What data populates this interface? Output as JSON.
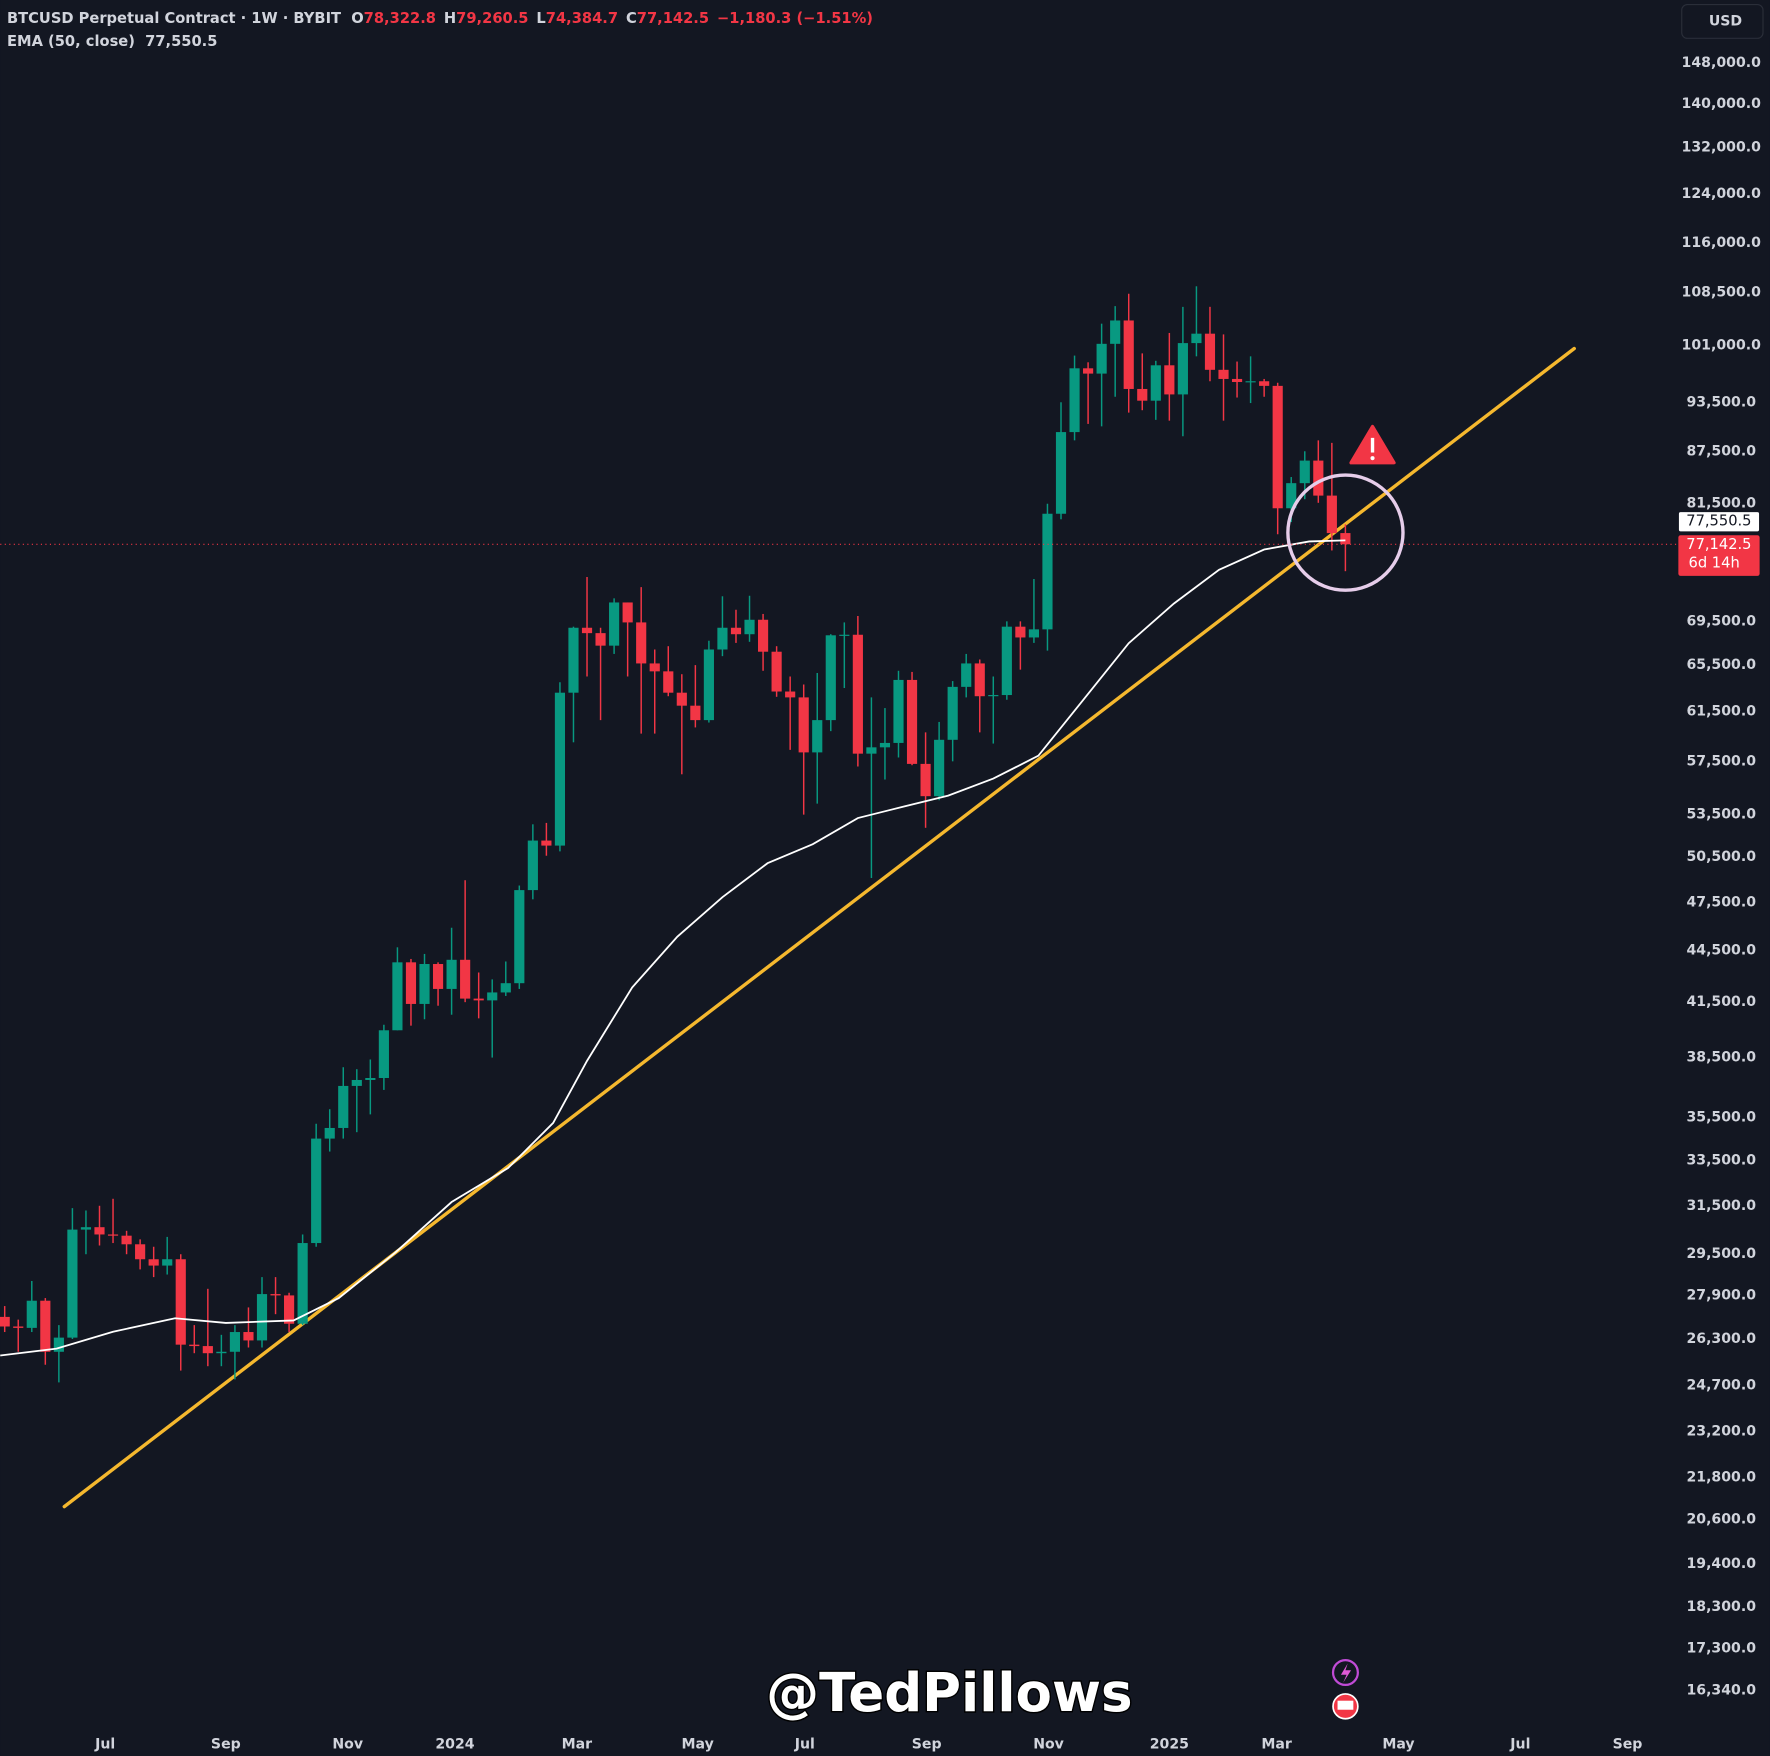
{
  "chart_data": {
    "type": "candlestick",
    "symbol": "BTCUSD Perpetual Contract · 1W · BYBIT",
    "ohlc_keys": [
      "O",
      "H",
      "L",
      "C"
    ],
    "ohlc_labels": [
      "78,322.8",
      "79,260.5",
      "74,384.7",
      "77,142.5"
    ],
    "change_label": "−1,180.3 (−1.51%)",
    "currency": "USD",
    "countdown": "6d 14h",
    "watermark": "@TedPillows",
    "log_scale": true,
    "grid": false,
    "up_color": "#089981",
    "down_color": "#f23645",
    "categories": [
      null,
      null,
      null,
      null,
      null,
      null,
      null,
      null,
      null,
      null,
      null,
      null,
      null,
      null,
      null,
      null,
      null,
      null,
      null,
      null,
      null,
      null,
      null,
      null,
      null,
      null,
      null,
      null,
      null,
      null,
      null,
      null,
      null,
      null,
      null,
      null,
      null,
      null,
      null,
      null,
      null,
      null,
      null,
      null,
      null,
      null,
      null,
      null,
      null,
      null,
      null,
      null,
      null,
      null,
      null,
      null,
      null,
      null,
      null,
      null,
      null,
      null,
      null,
      null,
      null,
      null,
      null,
      null,
      null,
      null,
      null,
      null,
      null,
      null,
      null,
      null,
      null,
      null,
      null,
      null,
      null,
      null,
      null,
      null,
      null,
      null,
      null,
      null,
      null,
      null,
      null,
      null,
      null,
      null,
      null,
      null,
      null,
      null,
      null,
      null
    ],
    "open": [
      27100,
      26750,
      26700,
      27700,
      25850,
      26350,
      30500,
      30600,
      30300,
      30250,
      29900,
      29300,
      29050,
      29300,
      26100,
      26050,
      25800,
      25850,
      26550,
      26250,
      27950,
      27900,
      26850,
      29950,
      34500,
      35000,
      37050,
      37350,
      37450,
      39950,
      43800,
      41400,
      43700,
      42250,
      43950,
      41700,
      41600,
      42050,
      42580,
      48300,
      51650,
      51300,
      63100,
      68900,
      68400,
      67250,
      71300,
      69400,
      65650,
      64950,
      63100,
      62000,
      60800,
      66900,
      68900,
      68300,
      69650,
      66700,
      63200,
      62700,
      58200,
      60800,
      68200,
      68250,
      58100,
      58600,
      58950,
      64200,
      57300,
      54850,
      59200,
      63600,
      65650,
      62800,
      62900,
      69000,
      68000,
      68750,
      80400,
      89800,
      97900,
      97200,
      101200,
      104450,
      95200,
      93700,
      98300,
      94500,
      101300,
      102600,
      97700,
      96500,
      96100,
      96200,
      95600,
      81000,
      83800,
      86400,
      82400,
      78322.8
    ],
    "high": [
      27500,
      27000,
      28450,
      27800,
      26800,
      31400,
      31300,
      31500,
      31800,
      30450,
      30100,
      29800,
      30200,
      29500,
      26800,
      28150,
      26450,
      26800,
      27450,
      28600,
      28600,
      28000,
      30300,
      35200,
      35900,
      38000,
      37900,
      38400,
      40250,
      44700,
      44000,
      44300,
      43800,
      45900,
      48950,
      43200,
      42800,
      43850,
      48600,
      52800,
      52900,
      64000,
      69000,
      73800,
      68900,
      71700,
      71300,
      72800,
      66900,
      67200,
      64700,
      65500,
      67700,
      71900,
      70600,
      71950,
      70200,
      67200,
      64500,
      63800,
      64800,
      68300,
      69400,
      70000,
      62700,
      61800,
      65000,
      64900,
      59800,
      60650,
      64100,
      66500,
      66000,
      64500,
      69500,
      69500,
      73600,
      81500,
      93500,
      99600,
      98700,
      104000,
      106500,
      108300,
      99900,
      98900,
      102700,
      106400,
      109400,
      106400,
      102500,
      98800,
      99500,
      96500,
      96000,
      84500,
      87500,
      88800,
      88500,
      79260.5
    ],
    "low": [
      26550,
      25850,
      26550,
      25400,
      24800,
      26300,
      29500,
      29850,
      29950,
      29500,
      28900,
      28600,
      28700,
      25200,
      25800,
      25350,
      25350,
      24900,
      26000,
      26000,
      27200,
      26550,
      26800,
      29800,
      33900,
      34500,
      34800,
      35650,
      36850,
      39950,
      40200,
      40550,
      41300,
      40800,
      41500,
      40600,
      38500,
      41850,
      42250,
      47700,
      50600,
      50900,
      59000,
      64500,
      60800,
      66500,
      64500,
      59700,
      59700,
      62800,
      56500,
      60200,
      60600,
      66300,
      67500,
      67600,
      65000,
      62750,
      58400,
      53500,
      54300,
      59900,
      63500,
      57100,
      49100,
      56100,
      57800,
      57200,
      52550,
      54550,
      57500,
      62700,
      59800,
      58900,
      62500,
      65100,
      67500,
      66800,
      79800,
      88800,
      90800,
      90500,
      94200,
      92200,
      92500,
      91300,
      91200,
      89300,
      99500,
      96200,
      91200,
      94100,
      93400,
      94200,
      78200,
      79500,
      82000,
      81600,
      76500,
      74384.7
    ],
    "close": [
      26750,
      26700,
      27700,
      25850,
      26350,
      30500,
      30600,
      30300,
      30250,
      29900,
      29300,
      29050,
      29300,
      26100,
      26050,
      25800,
      25850,
      26550,
      26250,
      27950,
      27900,
      26850,
      29950,
      34500,
      35000,
      37050,
      37350,
      37450,
      39950,
      43800,
      41400,
      43700,
      42250,
      43950,
      41700,
      41600,
      42050,
      42580,
      48300,
      51650,
      51300,
      63100,
      68900,
      68400,
      67250,
      71300,
      69400,
      65650,
      64950,
      63100,
      62000,
      60800,
      66900,
      68900,
      68300,
      69650,
      66700,
      63200,
      62700,
      58200,
      60800,
      68200,
      68250,
      58100,
      58600,
      58950,
      64200,
      57300,
      54850,
      59200,
      63600,
      65650,
      62800,
      62900,
      69000,
      68000,
      68750,
      80400,
      89800,
      97900,
      97200,
      101200,
      104450,
      95200,
      93700,
      98300,
      94500,
      101300,
      102600,
      97700,
      96500,
      96100,
      96200,
      95600,
      81000,
      83800,
      86400,
      82400,
      78322.8,
      77142.5
    ],
    "ema": {
      "name": "EMA (50, close)",
      "value_label": "77,550.5",
      "color": "#ffffff",
      "x": [
        -0.33,
        3.83,
        8,
        12.58,
        16.33,
        21.33,
        24.67,
        28.83,
        33,
        37.17,
        40.5,
        43,
        46.33,
        49.67,
        53,
        56.33,
        59.67,
        63,
        66.33,
        69.67,
        73,
        76.33,
        79.67,
        83,
        86.33,
        89.67,
        93,
        96.33,
        99
      ],
      "values": [
        25720,
        25960,
        26560,
        27050,
        26880,
        26970,
        27800,
        29560,
        31660,
        33150,
        35240,
        38330,
        42330,
        45350,
        47840,
        50090,
        51400,
        53250,
        54070,
        54890,
        56170,
        57940,
        62530,
        67470,
        71190,
        74530,
        76600,
        77440,
        77550.5
      ]
    },
    "trendline": {
      "color": "#f5b82e",
      "x": [
        4.4,
        115.9
      ],
      "values": [
        20960,
        100560
      ]
    },
    "xlim": [
      -0.33,
      123.42
    ],
    "xticks": [
      {
        "value": 7.42,
        "label": "Jul"
      },
      {
        "value": 16.33,
        "label": "Sep"
      },
      {
        "value": 25.33,
        "label": "Nov"
      },
      {
        "value": 33.25,
        "label": "2024"
      },
      {
        "value": 42.25,
        "label": "Mar"
      },
      {
        "value": 51.17,
        "label": "May"
      },
      {
        "value": 59.08,
        "label": "Jul"
      },
      {
        "value": 68.08,
        "label": "Sep"
      },
      {
        "value": 77.08,
        "label": "Nov"
      },
      {
        "value": 86,
        "label": "2025"
      },
      {
        "value": 93.92,
        "label": "Mar"
      },
      {
        "value": 102.92,
        "label": "May"
      },
      {
        "value": 111.92,
        "label": "Jul"
      },
      {
        "value": 119.83,
        "label": "Sep"
      }
    ],
    "ylim": [
      15560,
      161200
    ],
    "yticks": [
      {
        "value": 148000,
        "label": "148,000.0"
      },
      {
        "value": 140000,
        "label": "140,000.0"
      },
      {
        "value": 132000,
        "label": "132,000.0"
      },
      {
        "value": 124000,
        "label": "124,000.0"
      },
      {
        "value": 116000,
        "label": "116,000.0"
      },
      {
        "value": 108500,
        "label": "108,500.0"
      },
      {
        "value": 101000,
        "label": "101,000.0"
      },
      {
        "value": 93500,
        "label": "93,500.0"
      },
      {
        "value": 87500,
        "label": "87,500.0"
      },
      {
        "value": 81500,
        "label": "81,500.0"
      },
      {
        "value": 69500,
        "label": "69,500.0"
      },
      {
        "value": 65500,
        "label": "65,500.0"
      },
      {
        "value": 61500,
        "label": "61,500.0"
      },
      {
        "value": 57500,
        "label": "57,500.0"
      },
      {
        "value": 53500,
        "label": "53,500.0"
      },
      {
        "value": 50500,
        "label": "50,500.0"
      },
      {
        "value": 47500,
        "label": "47,500.0"
      },
      {
        "value": 44500,
        "label": "44,500.0"
      },
      {
        "value": 41500,
        "label": "41,500.0"
      },
      {
        "value": 38500,
        "label": "38,500.0"
      },
      {
        "value": 35500,
        "label": "35,500.0"
      },
      {
        "value": 33500,
        "label": "33,500.0"
      },
      {
        "value": 31500,
        "label": "31,500.0"
      },
      {
        "value": 29500,
        "label": "29,500.0"
      },
      {
        "value": 27900,
        "label": "27,900.0"
      },
      {
        "value": 26300,
        "label": "26,300.0"
      },
      {
        "value": 24700,
        "label": "24,700.0"
      },
      {
        "value": 23200,
        "label": "23,200.0"
      },
      {
        "value": 21800,
        "label": "21,800.0"
      },
      {
        "value": 20600,
        "label": "20,600.0"
      },
      {
        "value": 19400,
        "label": "19,400.0"
      },
      {
        "value": 18300,
        "label": "18,300.0"
      },
      {
        "value": 17300,
        "label": "17,300.0"
      },
      {
        "value": 16340,
        "label": "16,340.0"
      }
    ]
  }
}
